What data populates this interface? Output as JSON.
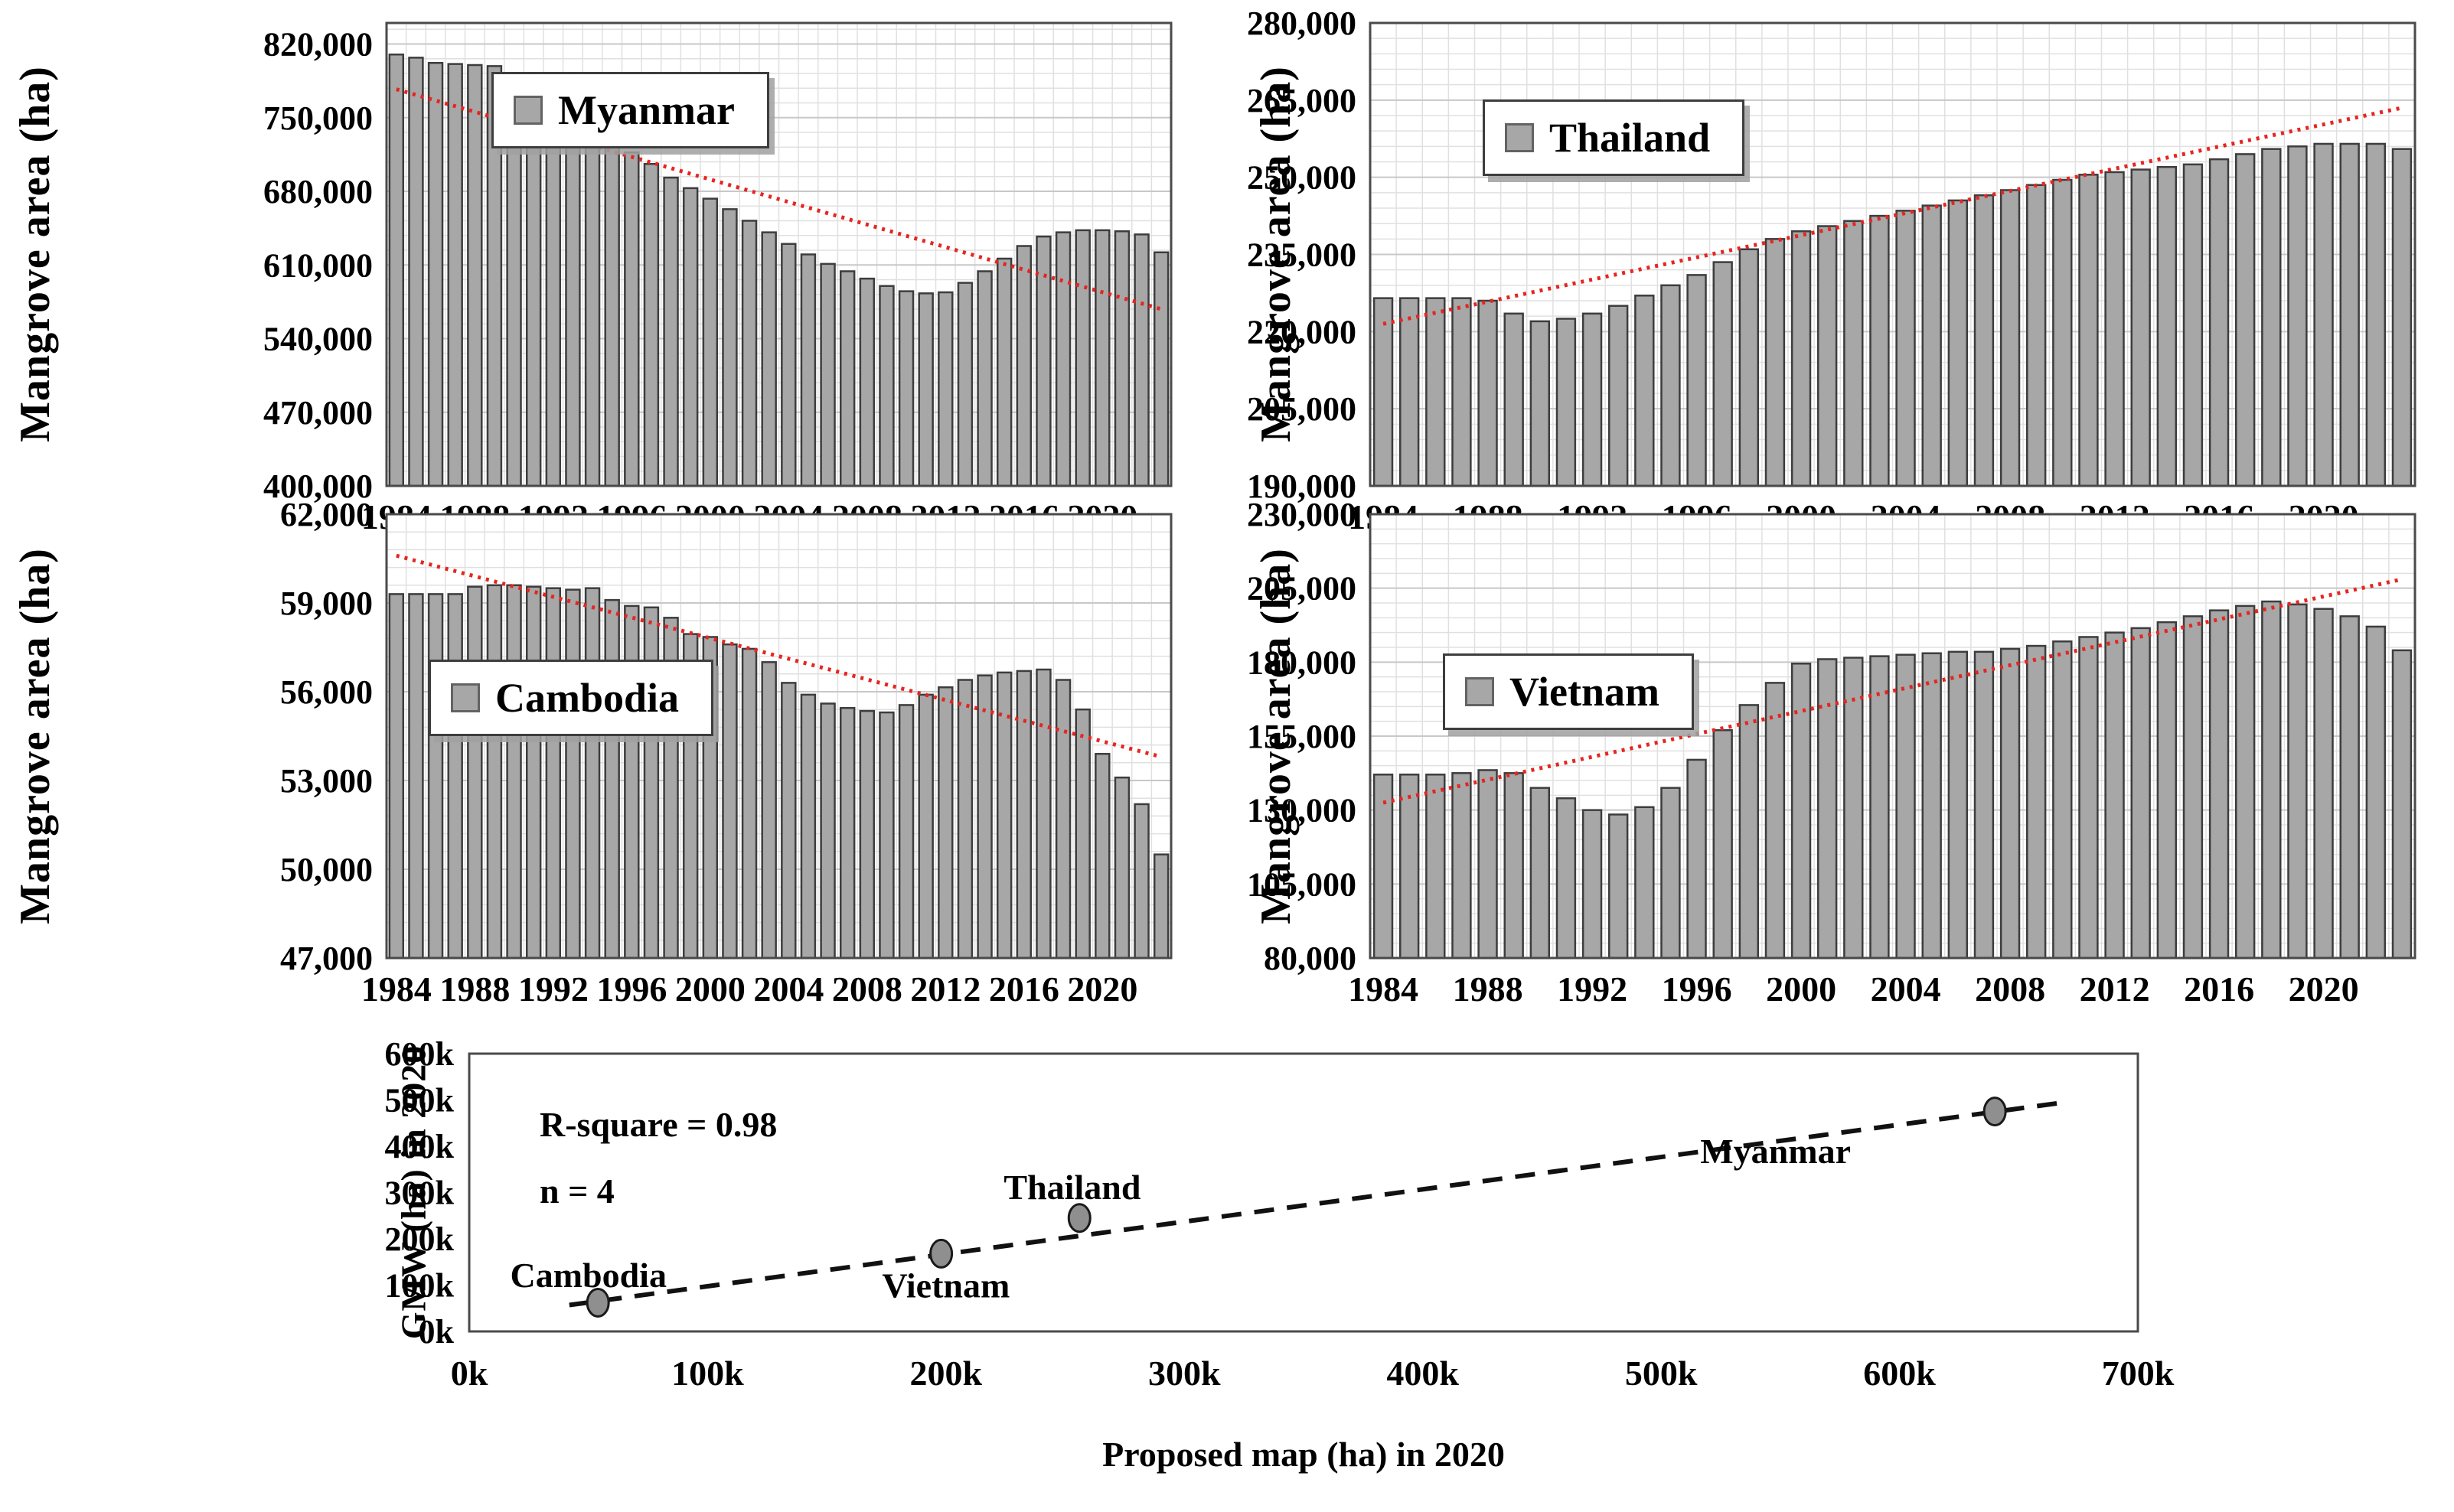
{
  "styles": {
    "bar_fill": "#a7a7a7",
    "bar_stroke": "#3d3d3d",
    "plot_border": "#4a4a4a",
    "grid_minor": "#e0e0e0",
    "grid_major": "#c8c8c8",
    "trend_red": "#e62520",
    "scatter_trend": "#111111",
    "point_fill": "#8f8f8f",
    "point_stroke": "#1a1a1a"
  },
  "chart_data": [
    {
      "type": "bar",
      "name": "Myanmar",
      "legend": "Myanmar",
      "ylabel": "Mangrove area (ha)",
      "ylim": [
        400000,
        840000
      ],
      "ymajor": 70000,
      "yminor": 14000,
      "ytick_values": [
        400000,
        470000,
        540000,
        610000,
        680000,
        750000,
        820000
      ],
      "ytick_labels": [
        "400,000",
        "470,000",
        "540,000",
        "610,000",
        "680,000",
        "750,000",
        "820,000"
      ],
      "year_start": 1984,
      "xtick_years": [
        1984,
        1988,
        1992,
        1996,
        2000,
        2004,
        2008,
        2012,
        2016,
        2020
      ],
      "xtick_labels": [
        "1984",
        "1988",
        "1992",
        "1996",
        "2000",
        "2004",
        "2008",
        "2012",
        "2016",
        "2020"
      ],
      "values": [
        810000,
        807000,
        802000,
        801000,
        800000,
        799000,
        790000,
        767000,
        756000,
        747000,
        738000,
        728000,
        717000,
        706000,
        693000,
        683000,
        673000,
        663000,
        652000,
        641000,
        630000,
        620000,
        611000,
        604000,
        597000,
        590000,
        585000,
        583000,
        584000,
        593000,
        604000,
        616000,
        628000,
        637000,
        641000,
        643000,
        643000,
        642000,
        639000,
        622000
      ],
      "trend": {
        "start": 777000,
        "end": 568000
      }
    },
    {
      "type": "bar",
      "name": "Thailand",
      "legend": "Thailand",
      "ylabel": "Mangrove area (ha)",
      "ylim": [
        190000,
        280000
      ],
      "ymajor": 15000,
      "yminor": 3000,
      "ytick_values": [
        190000,
        205000,
        220000,
        235000,
        250000,
        265000,
        280000
      ],
      "ytick_labels": [
        "190,000",
        "205,000",
        "220,000",
        "235,000",
        "250,000",
        "265,000",
        "280,000"
      ],
      "year_start": 1984,
      "xtick_years": [
        1984,
        1988,
        1992,
        1996,
        2000,
        2004,
        2008,
        2012,
        2016,
        2020
      ],
      "xtick_labels": [
        "1984",
        "1988",
        "1992",
        "1996",
        "2000",
        "2004",
        "2008",
        "2012",
        "2016",
        "2020"
      ],
      "values": [
        226500,
        226500,
        226500,
        226500,
        226000,
        223500,
        222000,
        222500,
        223500,
        225000,
        227000,
        229000,
        231000,
        233500,
        236000,
        238000,
        239500,
        240500,
        241500,
        242500,
        243500,
        244500,
        245500,
        246500,
        247500,
        248500,
        249500,
        250500,
        251000,
        251500,
        252000,
        252500,
        253500,
        254500,
        255500,
        256000,
        256500,
        256500,
        256500,
        255500
      ],
      "trend": {
        "start": 221500,
        "end": 263500
      }
    },
    {
      "type": "bar",
      "name": "Cambodia",
      "legend": "Cambodia",
      "ylabel": "Mangrove area (ha)",
      "ylim": [
        47000,
        62000
      ],
      "ymajor": 3000,
      "yminor": 600,
      "ytick_values": [
        47000,
        50000,
        53000,
        56000,
        59000,
        62000
      ],
      "ytick_labels": [
        "47,000",
        "50,000",
        "53,000",
        "56,000",
        "59,000",
        "62,000"
      ],
      "year_start": 1984,
      "xtick_years": [
        1984,
        1988,
        1992,
        1996,
        2000,
        2004,
        2008,
        2012,
        2016,
        2020
      ],
      "xtick_labels": [
        "1984",
        "1988",
        "1992",
        "1996",
        "2000",
        "2004",
        "2008",
        "2012",
        "2016",
        "2020"
      ],
      "values": [
        59300,
        59300,
        59300,
        59300,
        59550,
        59600,
        59600,
        59550,
        59500,
        59450,
        59500,
        59100,
        58900,
        58850,
        58500,
        57950,
        57850,
        57600,
        57450,
        57000,
        56300,
        55900,
        55600,
        55450,
        55350,
        55300,
        55550,
        55900,
        56150,
        56400,
        56550,
        56650,
        56700,
        56750,
        56400,
        55400,
        53900,
        53100,
        52200,
        50500
      ],
      "trend": {
        "start": 60600,
        "end": 53800
      }
    },
    {
      "type": "bar",
      "name": "Vietnam",
      "legend": "Vietnam",
      "ylabel": "Mangrove area (ha)",
      "ylim": [
        80000,
        230000
      ],
      "ymajor": 25000,
      "yminor": 5000,
      "ytick_values": [
        80000,
        105000,
        130000,
        155000,
        180000,
        205000,
        230000
      ],
      "ytick_labels": [
        "80,000",
        "105,000",
        "130,000",
        "155,000",
        "180,000",
        "205,000",
        "230,000"
      ],
      "year_start": 1984,
      "xtick_years": [
        1984,
        1988,
        1992,
        1996,
        2000,
        2004,
        2008,
        2012,
        2016,
        2020
      ],
      "xtick_labels": [
        "1984",
        "1988",
        "1992",
        "1996",
        "2000",
        "2004",
        "2008",
        "2012",
        "2016",
        "2020"
      ],
      "values": [
        142000,
        142000,
        142000,
        142500,
        143500,
        142500,
        137500,
        134000,
        130000,
        128500,
        131000,
        137500,
        147000,
        157000,
        165500,
        173000,
        179500,
        181000,
        181500,
        182000,
        182500,
        183000,
        183500,
        183500,
        184500,
        185500,
        187000,
        188500,
        190000,
        191500,
        193500,
        195500,
        197500,
        199000,
        200500,
        199500,
        198000,
        195500,
        192000,
        184000
      ],
      "trend": {
        "start": 132500,
        "end": 208000
      }
    },
    {
      "type": "scatter",
      "name": "validation",
      "xlabel": "Proposed map (ha) in 2020",
      "ylabel": "GMW (ha) in 2020",
      "xlim": [
        0,
        700000
      ],
      "ylim": [
        0,
        600000
      ],
      "xtick_values": [
        0,
        100000,
        200000,
        300000,
        400000,
        500000,
        600000,
        700000
      ],
      "xtick_labels": [
        "0k",
        "100k",
        "200k",
        "300k",
        "400k",
        "500k",
        "600k",
        "700k"
      ],
      "ytick_values": [
        0,
        100000,
        200000,
        300000,
        400000,
        500000,
        600000
      ],
      "ytick_labels": [
        "0k",
        "100k",
        "200k",
        "300k",
        "400k",
        "500k",
        "600k"
      ],
      "annotations": [
        "R-square = 0.98",
        "n = 4"
      ],
      "points": [
        {
          "label": "Cambodia",
          "x": 54000,
          "y": 62000,
          "label_at": [
            50000,
            122000
          ]
        },
        {
          "label": "Vietnam",
          "x": 198000,
          "y": 168000,
          "label_at": [
            200000,
            100000
          ]
        },
        {
          "label": "Thailand",
          "x": 256000,
          "y": 245000,
          "label_at": [
            253000,
            312000
          ]
        },
        {
          "label": "Myanmar",
          "x": 640000,
          "y": 475000,
          "label_at": [
            548000,
            390000
          ]
        }
      ],
      "trend": {
        "x1": 42000,
        "y1": 57000,
        "x2": 668000,
        "y2": 494000
      }
    }
  ]
}
